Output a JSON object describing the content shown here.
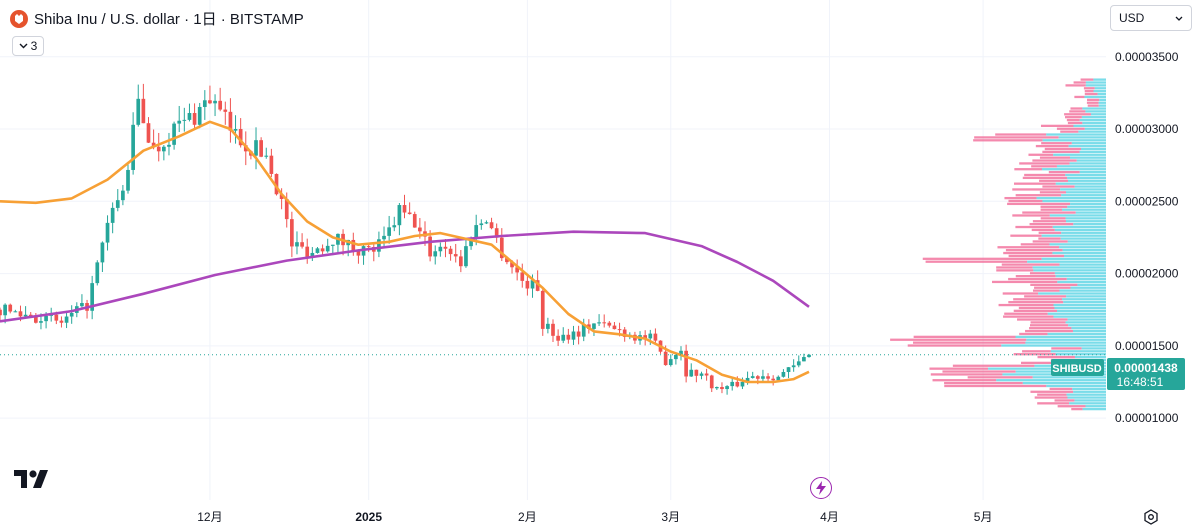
{
  "header": {
    "symbol_title": "Shiba Inu / U.S. dollar · 1日 · BITSTAMP",
    "indicators_count": "3",
    "currency_selector": "USD"
  },
  "icons": [
    "shiba-logo-icon",
    "chevron-down-icon",
    "tradingview-logo-icon",
    "lightning-icon",
    "gear-icon"
  ],
  "colors": {
    "up": "#26a69a",
    "down": "#ef5350",
    "ma_fast": "#f7a035",
    "ma_slow": "#ab47bc",
    "volume_profile_up": "#4dd0e1",
    "volume_profile_down": "#f06292",
    "price_label": "#26a69a"
  },
  "price_label": {
    "symbol": "SHIBUSD",
    "price": "0.00001438",
    "countdown": "16:48:51"
  },
  "chart_data": {
    "type": "candlestick",
    "y_axis": {
      "ticks": [
        1e-05,
        1.5e-05,
        2e-05,
        2.5e-05,
        3e-05,
        3.5e-05
      ],
      "tick_labels": [
        "0.00001000",
        "0.00001500",
        "0.00002000",
        "0.00002500",
        "0.00003000",
        "0.00003500"
      ],
      "ylim": [
        7.1e-06,
        3.63e-05
      ]
    },
    "x_axis": {
      "tick_labels": [
        "12月",
        "2025",
        "2月",
        "3月",
        "4月",
        "5月"
      ],
      "tick_dates": [
        "2024-12-01",
        "2025-01-01",
        "2025-02-01",
        "2025-03-01",
        "2025-04-01",
        "2025-05-01"
      ],
      "range": [
        "2024-10-21",
        "2025-05-25"
      ]
    },
    "last_price": 1.438e-05,
    "close_path": [
      [
        "2024-10-21",
        1.75e-05
      ],
      [
        "2024-10-27",
        1.71e-05
      ],
      [
        "2024-11-02",
        1.66e-05
      ],
      [
        "2024-11-07",
        1.78e-05
      ],
      [
        "2024-11-12",
        2.45e-05
      ],
      [
        "2024-11-14",
        2.55e-05
      ],
      [
        "2024-11-17",
        3.18e-05
      ],
      [
        "2024-11-20",
        2.85e-05
      ],
      [
        "2024-11-24",
        3e-05
      ],
      [
        "2024-11-28",
        3.1e-05
      ],
      [
        "2024-12-01",
        3.22e-05
      ],
      [
        "2024-12-05",
        3e-05
      ],
      [
        "2024-12-08",
        2.9e-05
      ],
      [
        "2024-12-12",
        2.82e-05
      ],
      [
        "2024-12-15",
        2.5e-05
      ],
      [
        "2024-12-17",
        2.2e-05
      ],
      [
        "2024-12-21",
        2.15e-05
      ],
      [
        "2024-12-25",
        2.25e-05
      ],
      [
        "2024-12-28",
        2.2e-05
      ],
      [
        "2025-01-01",
        2.15e-05
      ],
      [
        "2025-01-04",
        2.22e-05
      ],
      [
        "2025-01-07",
        2.43e-05
      ],
      [
        "2025-01-10",
        2.35e-05
      ],
      [
        "2025-01-13",
        2.15e-05
      ],
      [
        "2025-01-16",
        2.2e-05
      ],
      [
        "2025-01-19",
        2.07e-05
      ],
      [
        "2025-01-21",
        2.28e-05
      ],
      [
        "2025-01-24",
        2.4e-05
      ],
      [
        "2025-01-27",
        2.15e-05
      ],
      [
        "2025-01-31",
        1.95e-05
      ],
      [
        "2025-02-03",
        1.9e-05
      ],
      [
        "2025-02-04",
        1.65e-05
      ],
      [
        "2025-02-07",
        1.56e-05
      ],
      [
        "2025-02-11",
        1.6e-05
      ],
      [
        "2025-02-14",
        1.66e-05
      ],
      [
        "2025-02-18",
        1.62e-05
      ],
      [
        "2025-02-22",
        1.57e-05
      ],
      [
        "2025-02-25",
        1.55e-05
      ],
      [
        "2025-02-28",
        1.4e-05
      ],
      [
        "2025-03-03",
        1.48e-05
      ],
      [
        "2025-03-04",
        1.32e-05
      ],
      [
        "2025-03-07",
        1.31e-05
      ],
      [
        "2025-03-10",
        1.2e-05
      ],
      [
        "2025-03-13",
        1.22e-05
      ],
      [
        "2025-03-16",
        1.28e-05
      ],
      [
        "2025-03-19",
        1.3e-05
      ],
      [
        "2025-03-22",
        1.29e-05
      ],
      [
        "2025-03-25",
        1.35e-05
      ],
      [
        "2025-03-27",
        1.41e-05
      ],
      [
        "2025-03-28",
        1.43e-05
      ]
    ],
    "series": [
      {
        "values": [
          [
            "2024-10-21",
            2.5e-05
          ],
          [
            "2024-10-28",
            2.49e-05
          ],
          [
            "2024-11-04",
            2.52e-05
          ],
          [
            "2024-11-11",
            2.65e-05
          ],
          [
            "2024-11-18",
            2.85e-05
          ],
          [
            "2024-11-25",
            2.95e-05
          ],
          [
            "2024-12-01",
            3.05e-05
          ],
          [
            "2024-12-05",
            3e-05
          ],
          [
            "2024-12-10",
            2.8e-05
          ],
          [
            "2024-12-15",
            2.55e-05
          ],
          [
            "2024-12-20",
            2.36e-05
          ],
          [
            "2024-12-25",
            2.25e-05
          ],
          [
            "2024-12-30",
            2.2e-05
          ],
          [
            "2025-01-05",
            2.22e-05
          ],
          [
            "2025-01-10",
            2.26e-05
          ],
          [
            "2025-01-15",
            2.28e-05
          ],
          [
            "2025-01-20",
            2.24e-05
          ],
          [
            "2025-01-25",
            2.2e-05
          ],
          [
            "2025-01-30",
            2.05e-05
          ],
          [
            "2025-02-04",
            1.9e-05
          ],
          [
            "2025-02-09",
            1.72e-05
          ],
          [
            "2025-02-14",
            1.6e-05
          ],
          [
            "2025-02-19",
            1.58e-05
          ],
          [
            "2025-02-24",
            1.55e-05
          ],
          [
            "2025-03-01",
            1.46e-05
          ],
          [
            "2025-03-06",
            1.4e-05
          ],
          [
            "2025-03-11",
            1.3e-05
          ],
          [
            "2025-03-16",
            1.25e-05
          ],
          [
            "2025-03-21",
            1.25e-05
          ],
          [
            "2025-03-25",
            1.27e-05
          ],
          [
            "2025-03-28",
            1.32e-05
          ]
        ]
      },
      {
        "values": [
          [
            "2024-10-21",
            1.67e-05
          ],
          [
            "2024-11-04",
            1.74e-05
          ],
          [
            "2024-11-18",
            1.86e-05
          ],
          [
            "2024-12-02",
            1.99e-05
          ],
          [
            "2024-12-16",
            2.09e-05
          ],
          [
            "2024-12-30",
            2.16e-05
          ],
          [
            "2025-01-13",
            2.22e-05
          ],
          [
            "2025-01-27",
            2.26e-05
          ],
          [
            "2025-02-10",
            2.29e-05
          ],
          [
            "2025-02-24",
            2.28e-05
          ],
          [
            "2025-03-07",
            2.19e-05
          ],
          [
            "2025-03-14",
            2.08e-05
          ],
          [
            "2025-03-21",
            1.95e-05
          ],
          [
            "2025-03-28",
            1.77e-05
          ]
        ]
      }
    ],
    "volume_profile": {
      "price_range": [
        1.05e-05,
        3.35e-05
      ],
      "rows": 115
    }
  }
}
